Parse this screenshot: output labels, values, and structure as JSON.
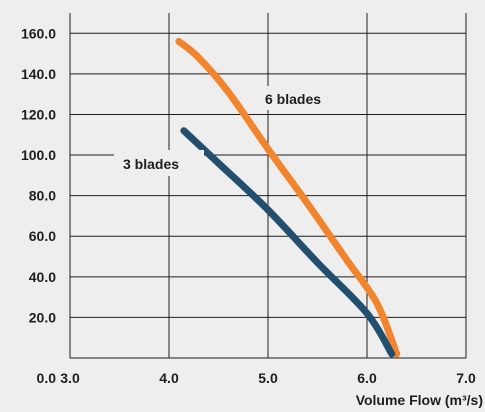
{
  "chart_data": {
    "type": "line",
    "xlabel": "Volume Flow (m³/s)",
    "ylabel": "",
    "xlim": [
      3.0,
      7.0
    ],
    "ylim": [
      0.0,
      170.0
    ],
    "x_ticks": [
      "3.0",
      "4.0",
      "5.0",
      "6.0",
      "7.0"
    ],
    "y_ticks": [
      "0.0",
      "20.0",
      "40.0",
      "60.0",
      "80.0",
      "100.0",
      "120.0",
      "140.0",
      "160.0"
    ],
    "grid": true,
    "series": [
      {
        "name": "6 blades",
        "color": "#f0852d",
        "points": [
          [
            4.1,
            156
          ],
          [
            4.3,
            148
          ],
          [
            4.6,
            131
          ],
          [
            5.0,
            103
          ],
          [
            5.4,
            76
          ],
          [
            5.8,
            48
          ],
          [
            6.1,
            27
          ],
          [
            6.3,
            2
          ]
        ]
      },
      {
        "name": "3 blades",
        "color": "#234f6e",
        "points": [
          [
            4.15,
            112
          ],
          [
            4.5,
            96
          ],
          [
            5.0,
            73
          ],
          [
            5.5,
            47
          ],
          [
            6.0,
            22
          ],
          [
            6.25,
            2
          ]
        ]
      }
    ]
  }
}
